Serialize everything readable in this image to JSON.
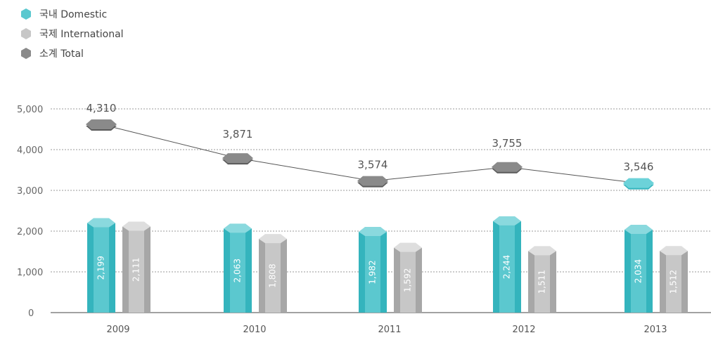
{
  "legend": {
    "domestic_label": "국내  Domestic",
    "international_label": "국제  International",
    "total_label": "소계  Total"
  },
  "chart_data": {
    "type": "bar",
    "categories": [
      "2009",
      "2010",
      "2011",
      "2012",
      "2013"
    ],
    "series": [
      {
        "name": "국내  Domestic",
        "type": "bar",
        "values": [
          2199,
          2063,
          1982,
          2244,
          2034
        ],
        "labels": [
          "2,199",
          "2,063",
          "1,982",
          "2,244",
          "2,034"
        ]
      },
      {
        "name": "국제  International",
        "type": "bar",
        "values": [
          2111,
          1808,
          1592,
          1511,
          1512
        ],
        "labels": [
          "2,111",
          "1,808",
          "1,592",
          "1,511",
          "1,512"
        ]
      },
      {
        "name": "소계  Total",
        "type": "line",
        "values": [
          4310,
          3871,
          3574,
          3755,
          3546
        ],
        "labels": [
          "4,310",
          "3,871",
          "3,574",
          "3,755",
          "3,546"
        ]
      }
    ],
    "yticks": [
      "0",
      "1,000",
      "2,000",
      "3,000",
      "4,000",
      "5,000"
    ],
    "ylim": [
      0,
      5000
    ],
    "grid": true,
    "legend_position": "top-left",
    "colors": {
      "domestic": "#5bc8cf",
      "domestic_dark": "#34b4bd",
      "domestic_top": "#8ad9de",
      "international": "#c7c7c7",
      "international_dark": "#a7a7a7",
      "international_top": "#dedede",
      "total": "#8a8a8a",
      "total_dark": "#5a5a5a",
      "highlight": "#6cd2d9"
    }
  }
}
